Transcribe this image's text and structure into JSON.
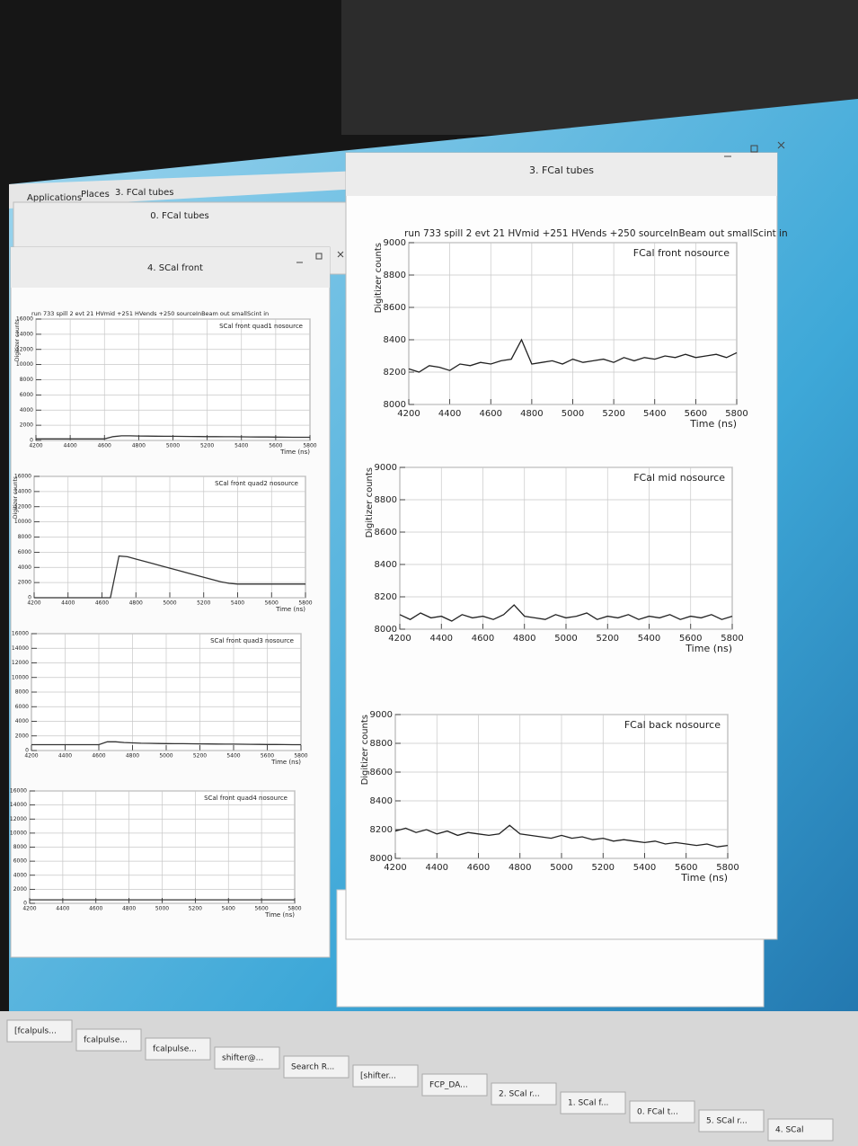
{
  "menu": [
    "Applications",
    "Places",
    "3. FCal tubes"
  ],
  "windows": [
    "0. FCal tubes",
    "4. SCal front",
    "3. FCal tubes"
  ],
  "taskbar": [
    "[fcalpuls...",
    "fcalpulse...",
    "fcalpulse...",
    "shifter@...",
    "Search R...",
    "[shifter...",
    "FCP_DA...",
    "2. SCal r...",
    "1. SCal f...",
    "0. FCal t...",
    "5. SCal r...",
    "4. SCal"
  ],
  "chart_data": [
    {
      "type": "line",
      "subtitle": "run 733 spill 2 evt 21 HVmid +251 HVends +250 sourceInBeam out smallScint in",
      "title": "FCal front nosource",
      "xlabel": "Time (ns)",
      "ylabel": "Digitizer counts",
      "color": "#222222",
      "grid": true,
      "x": [
        4200,
        4250,
        4300,
        4350,
        4400,
        4450,
        4500,
        4550,
        4600,
        4650,
        4700,
        4750,
        4800,
        4850,
        4900,
        4950,
        5000,
        5050,
        5100,
        5150,
        5200,
        5250,
        5300,
        5350,
        5400,
        5450,
        5500,
        5550,
        5600,
        5650,
        5700,
        5750,
        5800
      ],
      "values": [
        8220,
        8200,
        8240,
        8230,
        8210,
        8250,
        8240,
        8260,
        8250,
        8270,
        8280,
        8400,
        8250,
        8260,
        8270,
        8250,
        8280,
        8260,
        8270,
        8280,
        8260,
        8290,
        8270,
        8290,
        8280,
        8300,
        8290,
        8310,
        8290,
        8300,
        8310,
        8290,
        8320
      ],
      "xlim": [
        4200,
        5800
      ],
      "xticks": [
        4200,
        4400,
        4600,
        4800,
        5000,
        5200,
        5400,
        5600,
        5800
      ],
      "ylim": [
        8000,
        9000
      ],
      "yticks": [
        8000,
        8200,
        8400,
        8600,
        8800,
        9000
      ]
    },
    {
      "type": "line",
      "title": "FCal mid nosource",
      "xlabel": "Time (ns)",
      "ylabel": "Digitizer counts",
      "color": "#222222",
      "grid": true,
      "x": [
        4200,
        4250,
        4300,
        4350,
        4400,
        4450,
        4500,
        4550,
        4600,
        4650,
        4700,
        4750,
        4800,
        4850,
        4900,
        4950,
        5000,
        5050,
        5100,
        5150,
        5200,
        5250,
        5300,
        5350,
        5400,
        5450,
        5500,
        5550,
        5600,
        5650,
        5700,
        5750,
        5800
      ],
      "values": [
        8090,
        8060,
        8100,
        8070,
        8080,
        8050,
        8090,
        8070,
        8080,
        8060,
        8090,
        8150,
        8080,
        8070,
        8060,
        8090,
        8070,
        8080,
        8100,
        8060,
        8080,
        8070,
        8090,
        8060,
        8080,
        8070,
        8090,
        8060,
        8080,
        8070,
        8090,
        8060,
        8080
      ],
      "xlim": [
        4200,
        5800
      ],
      "xticks": [
        4200,
        4400,
        4600,
        4800,
        5000,
        5200,
        5400,
        5600,
        5800
      ],
      "ylim": [
        8000,
        9000
      ],
      "yticks": [
        8000,
        8200,
        8400,
        8600,
        8800,
        9000
      ]
    },
    {
      "type": "line",
      "title": "FCal back nosource",
      "xlabel": "Time (ns)",
      "ylabel": "Digitizer counts",
      "color": "#222222",
      "grid": true,
      "x": [
        4200,
        4250,
        4300,
        4350,
        4400,
        4450,
        4500,
        4550,
        4600,
        4650,
        4700,
        4750,
        4800,
        4850,
        4900,
        4950,
        5000,
        5050,
        5100,
        5150,
        5200,
        5250,
        5300,
        5350,
        5400,
        5450,
        5500,
        5550,
        5600,
        5650,
        5700,
        5750,
        5800
      ],
      "values": [
        8190,
        8210,
        8180,
        8200,
        8170,
        8190,
        8160,
        8180,
        8170,
        8160,
        8170,
        8230,
        8170,
        8160,
        8150,
        8140,
        8160,
        8140,
        8150,
        8130,
        8140,
        8120,
        8130,
        8120,
        8110,
        8120,
        8100,
        8110,
        8100,
        8090,
        8100,
        8080,
        8090
      ],
      "xlim": [
        4200,
        5800
      ],
      "xticks": [
        4200,
        4400,
        4600,
        4800,
        5000,
        5200,
        5400,
        5600,
        5800
      ],
      "ylim": [
        8000,
        9000
      ],
      "yticks": [
        8000,
        8200,
        8400,
        8600,
        8800,
        9000
      ]
    },
    {
      "type": "line",
      "subtitle": "run 733 spill 2 evt 21 HVmid +251 HVends +250 sourceInBeam out smallScint in",
      "title": "SCal front quad1 nosource",
      "xlabel": "Time (ns)",
      "ylabel": "Digitizer counts",
      "color": "#333333",
      "grid": true,
      "x": [
        4200,
        4250,
        4300,
        4350,
        4400,
        4450,
        4500,
        4550,
        4600,
        4650,
        4700,
        4750,
        4800,
        4850,
        4900,
        4950,
        5000,
        5050,
        5100,
        5150,
        5200,
        5250,
        5300,
        5350,
        5400,
        5450,
        5500,
        5550,
        5600,
        5650,
        5700,
        5750,
        5800
      ],
      "values": [
        200,
        200,
        200,
        200,
        200,
        200,
        200,
        200,
        200,
        500,
        600,
        600,
        580,
        570,
        560,
        550,
        540,
        530,
        520,
        510,
        500,
        500,
        490,
        480,
        470,
        460,
        450,
        450,
        440,
        430,
        420,
        420,
        410
      ],
      "xlim": [
        4200,
        5800
      ],
      "xticks": [
        4200,
        4400,
        4600,
        4800,
        5000,
        5200,
        5400,
        5600,
        5800
      ],
      "ylim": [
        0,
        16000
      ],
      "yticks": [
        0,
        2000,
        4000,
        6000,
        8000,
        10000,
        12000,
        14000,
        16000
      ]
    },
    {
      "type": "line",
      "title": "SCal front quad2 nosource",
      "xlabel": "Time (ns)",
      "ylabel": "Digitizer counts",
      "color": "#333333",
      "grid": true,
      "x": [
        4200,
        4250,
        4300,
        4350,
        4400,
        4450,
        4500,
        4550,
        4600,
        4650,
        4700,
        4750,
        4800,
        4850,
        4900,
        4950,
        5000,
        5050,
        5100,
        5150,
        5200,
        5250,
        5300,
        5350,
        5400,
        5450,
        5500,
        5550,
        5600,
        5650,
        5700,
        5750,
        5800
      ],
      "values": [
        0,
        0,
        0,
        0,
        0,
        0,
        0,
        0,
        0,
        0,
        5500,
        5400,
        5100,
        4800,
        4500,
        4200,
        3900,
        3600,
        3300,
        3000,
        2700,
        2400,
        2100,
        1900,
        1800,
        1800,
        1800,
        1800,
        1800,
        1800,
        1800,
        1800,
        1800
      ],
      "xlim": [
        4200,
        5800
      ],
      "xticks": [
        4200,
        4400,
        4600,
        4800,
        5000,
        5200,
        5400,
        5600,
        5800
      ],
      "ylim": [
        0,
        16000
      ],
      "yticks": [
        0,
        2000,
        4000,
        6000,
        8000,
        10000,
        12000,
        14000,
        16000
      ]
    },
    {
      "type": "line",
      "title": "SCal front quad3 nosource",
      "xlabel": "Time (ns)",
      "color": "#333333",
      "grid": true,
      "x": [
        4200,
        4250,
        4300,
        4350,
        4400,
        4450,
        4500,
        4550,
        4600,
        4650,
        4700,
        4750,
        4800,
        4850,
        4900,
        4950,
        5000,
        5050,
        5100,
        5150,
        5200,
        5250,
        5300,
        5350,
        5400,
        5450,
        5500,
        5550,
        5600,
        5650,
        5700,
        5750,
        5800
      ],
      "values": [
        800,
        800,
        800,
        800,
        800,
        800,
        800,
        800,
        800,
        1200,
        1200,
        1100,
        1050,
        1000,
        980,
        960,
        950,
        940,
        930,
        920,
        910,
        900,
        890,
        880,
        870,
        860,
        850,
        840,
        830,
        820,
        810,
        800,
        800
      ],
      "xlim": [
        4200,
        5800
      ],
      "xticks": [
        4200,
        4400,
        4600,
        4800,
        5000,
        5200,
        5400,
        5600,
        5800
      ],
      "ylim": [
        0,
        16000
      ],
      "yticks": [
        0,
        2000,
        4000,
        6000,
        8000,
        10000,
        12000,
        14000,
        16000
      ]
    },
    {
      "type": "line",
      "title": "SCal front quad4 nosource",
      "xlabel": "Time (ns)",
      "color": "#333333",
      "grid": true,
      "x": [
        4200,
        4250,
        4300,
        4350,
        4400,
        4450,
        4500,
        4550,
        4600,
        4650,
        4700,
        4750,
        4800,
        4850,
        4900,
        4950,
        5000,
        5050,
        5100,
        5150,
        5200,
        5250,
        5300,
        5350,
        5400,
        5450,
        5500,
        5550,
        5600,
        5650,
        5700,
        5750,
        5800
      ],
      "values": [
        500,
        500,
        500,
        500,
        500,
        500,
        500,
        500,
        500,
        500,
        500,
        500,
        500,
        500,
        500,
        500,
        500,
        500,
        500,
        500,
        500,
        500,
        500,
        500,
        500,
        500,
        500,
        500,
        500,
        500,
        500,
        500,
        500
      ],
      "xlim": [
        4200,
        5800
      ],
      "xticks": [
        4200,
        4400,
        4600,
        4800,
        5000,
        5200,
        5400,
        5600,
        5800
      ],
      "ylim": [
        0,
        16000
      ],
      "yticks": [
        0,
        2000,
        4000,
        6000,
        8000,
        10000,
        12000,
        14000,
        16000
      ]
    }
  ]
}
